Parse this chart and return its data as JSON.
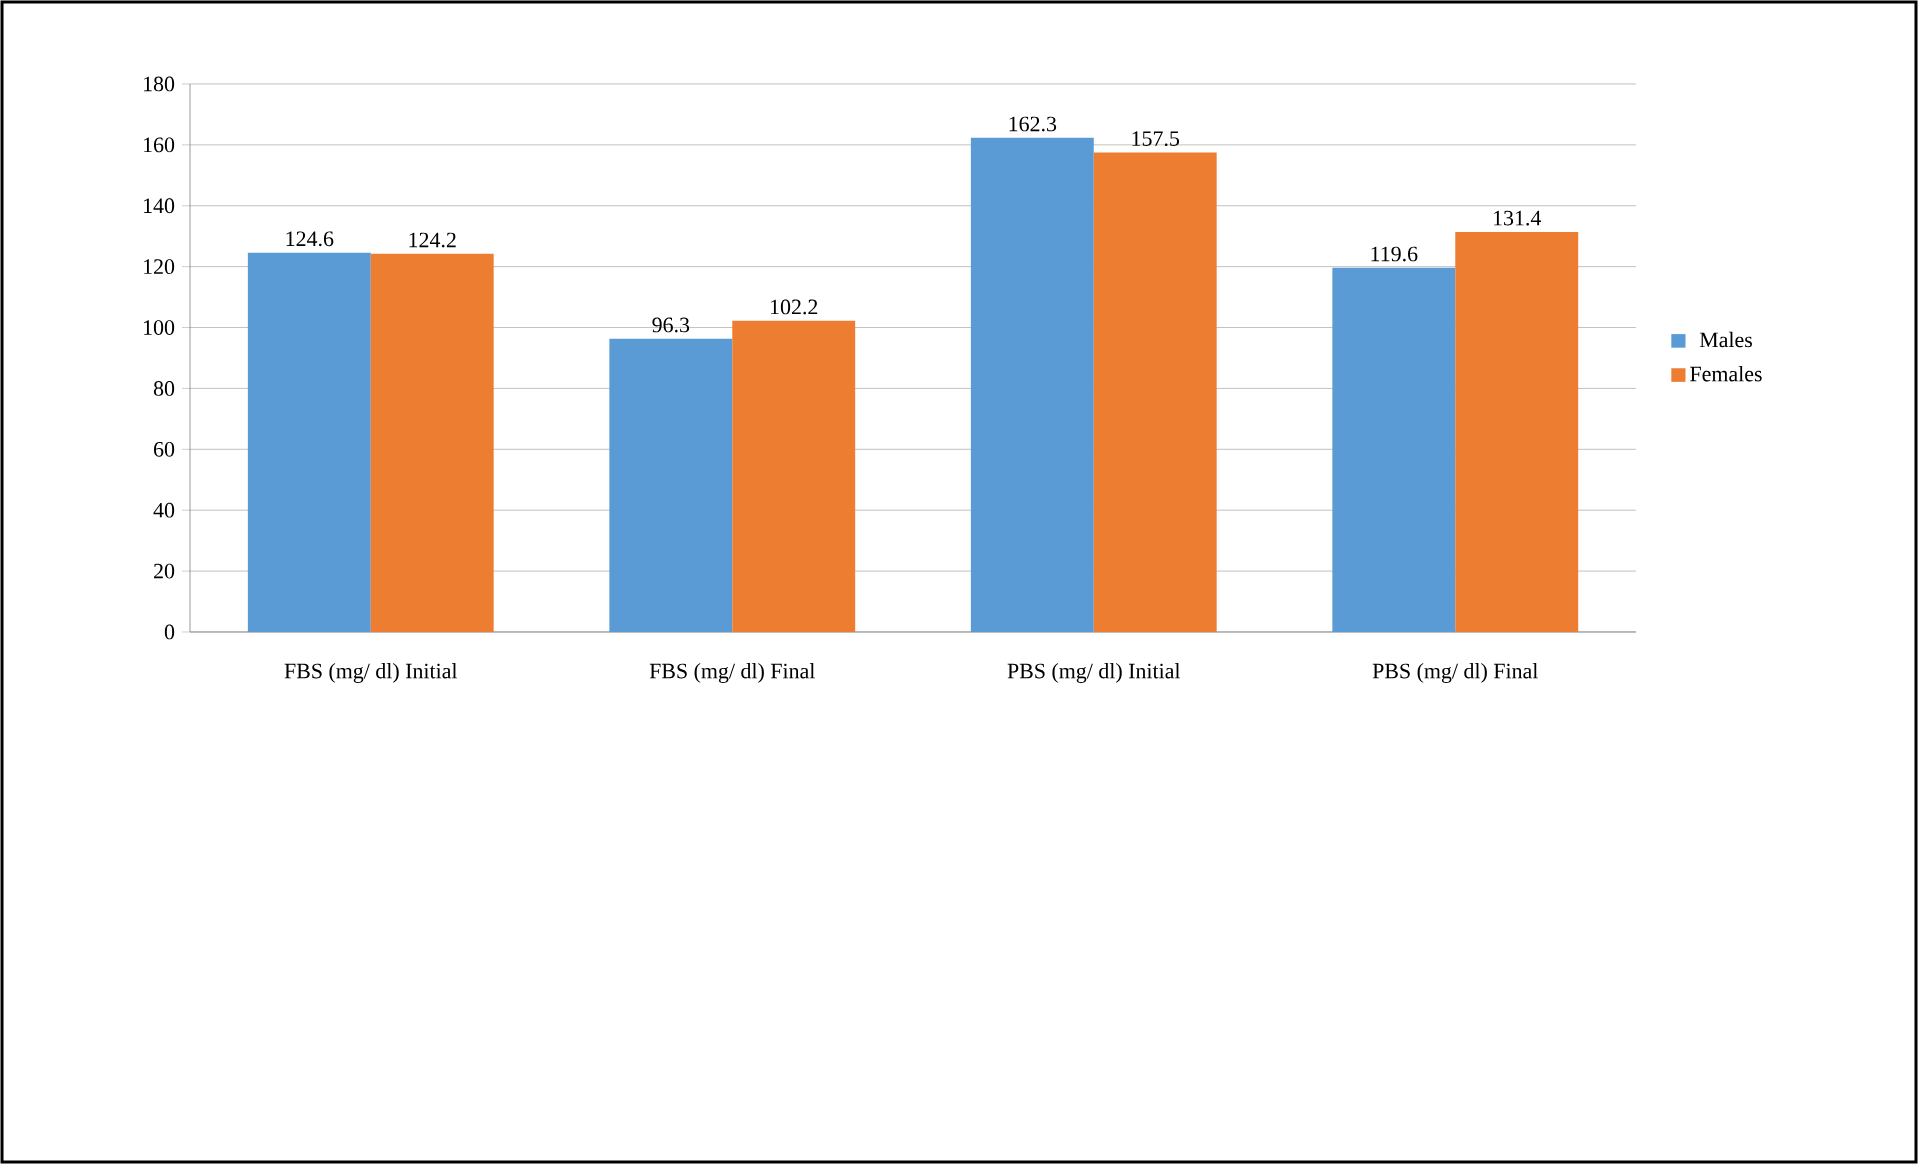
{
  "chart_data": {
    "type": "bar",
    "categories": [
      "FBS (mg/ dl) Initial",
      "FBS (mg/ dl) Final",
      "PBS (mg/ dl) Initial",
      "PBS (mg/ dl) Final"
    ],
    "series": [
      {
        "name": "Males",
        "color": "#5b9bd5",
        "values": [
          124.6,
          96.3,
          162.3,
          119.6
        ]
      },
      {
        "name": "Females",
        "color": "#ed7d31",
        "values": [
          124.2,
          102.2,
          157.5,
          131.4
        ]
      }
    ],
    "ylim": [
      0,
      180
    ],
    "yticks": [
      0,
      20,
      40,
      60,
      80,
      100,
      120,
      140,
      160,
      180
    ],
    "grid": "y",
    "legend": "right",
    "data_labels": true
  }
}
